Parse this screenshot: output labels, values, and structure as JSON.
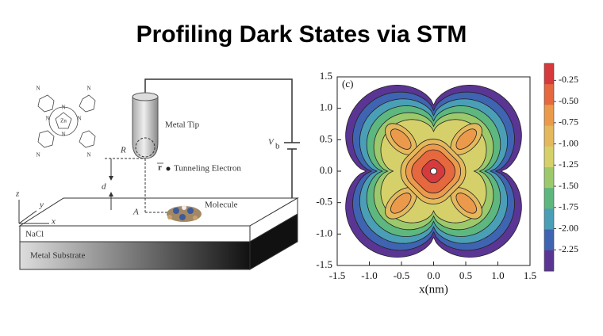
{
  "title": "Profiling Dark States via STM",
  "diagram": {
    "molecule_atoms": [
      "N",
      "N",
      "N",
      "N",
      "Zn",
      "N",
      "N",
      "N",
      "N"
    ],
    "metal_tip": "Metal Tip",
    "R": "R",
    "Vb": {
      "main": "V",
      "sub": "b"
    },
    "r": "r",
    "tunneling": "Tunneling Electron",
    "d": "d",
    "A": "A",
    "molecule": "Molecule",
    "z": "z",
    "y": "y",
    "x": "x",
    "nacl": "NaCl",
    "substrate": "Metal Substrate"
  },
  "chart_data": {
    "type": "contour",
    "panel_label": "(c)",
    "x_label": "x(nm)",
    "xlim": [
      -1.5,
      1.5
    ],
    "ylim": [
      -1.5,
      1.5
    ],
    "xticks": [
      -1.5,
      {
        "value": -1,
        "label": "-1.0"
      },
      -0.5,
      {
        "value": 0,
        "label": "0.0"
      },
      0.5,
      {
        "value": 1,
        "label": "1.0"
      },
      1.5
    ],
    "yticks": [
      -1.5,
      {
        "value": -1,
        "label": "-1.0"
      },
      -0.5,
      {
        "value": 0,
        "label": "0.0"
      },
      0.5,
      {
        "value": 1,
        "label": "1.0"
      },
      1.5
    ],
    "colorbar": {
      "lim": [
        -2.5,
        -0.05
      ],
      "ticks": [
        -0.25,
        {
          "value": -0.5,
          "label": "-0.50"
        },
        -0.75,
        {
          "value": -1,
          "label": "-1.00"
        },
        -1.25,
        {
          "value": -1.5,
          "label": "-1.50"
        },
        -1.75,
        {
          "value": -2,
          "label": "-2.00"
        },
        -2.25
      ],
      "colors": [
        "#d63a3c",
        "#e5683f",
        "#eb9a4c",
        "#e4b85c",
        "#d6d06a",
        "#9cc96c",
        "#5db77e",
        "#4a9fb6",
        "#3f64b1",
        "#5a3594"
      ]
    }
  }
}
